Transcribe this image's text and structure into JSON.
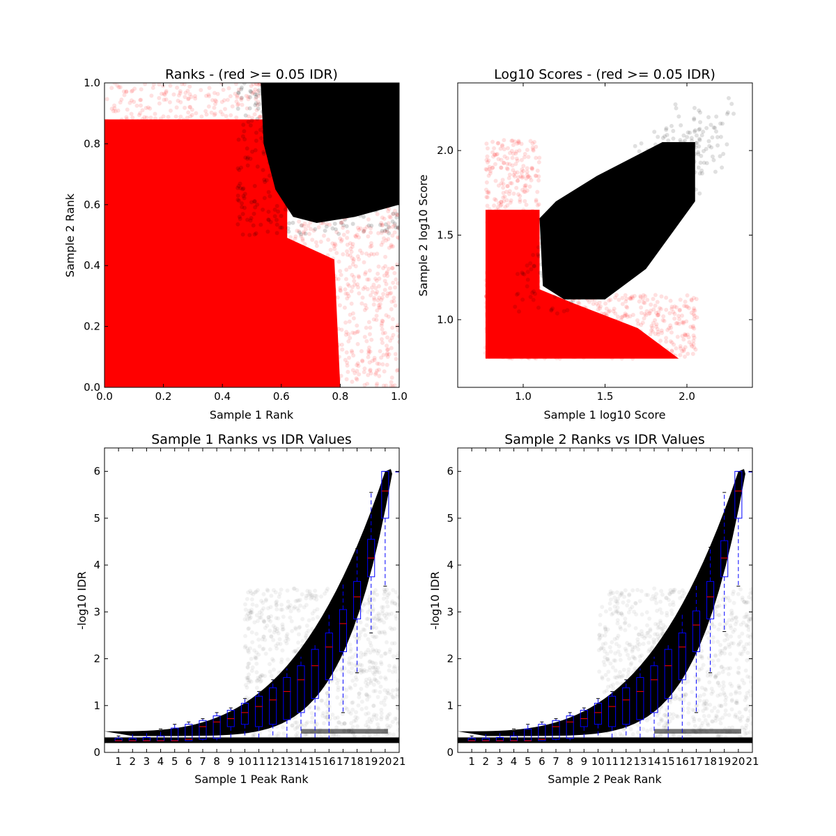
{
  "chart_data": [
    {
      "type": "scatter",
      "title": "Ranks - (red >= 0.05 IDR)",
      "xlabel": "Sample 1 Rank",
      "ylabel": "Sample 2 Rank",
      "xlim": [
        0.0,
        1.0
      ],
      "ylim": [
        0.0,
        1.0
      ],
      "xticks": [
        "0.0",
        "0.2",
        "0.4",
        "0.6",
        "0.8",
        "1.0"
      ],
      "yticks": [
        "0.0",
        "0.2",
        "0.4",
        "0.6",
        "0.8",
        "1.0"
      ],
      "grid": false,
      "series": [
        {
          "color": "#ff0000",
          "description_points": "dense cloud covering most of the area below the black region",
          "extent": {
            "x": [
              0.0,
              1.0
            ],
            "y": [
              0.0,
              1.0
            ]
          }
        },
        {
          "color": "#000000",
          "extent": {
            "x": [
              0.53,
              1.0
            ],
            "y": [
              0.54,
              1.0
            ]
          }
        }
      ],
      "black_boundary": [
        [
          0.53,
          1.0
        ],
        [
          0.54,
          0.8
        ],
        [
          0.58,
          0.65
        ],
        [
          0.64,
          0.56
        ],
        [
          0.72,
          0.54
        ],
        [
          0.85,
          0.56
        ],
        [
          1.0,
          0.6
        ]
      ]
    },
    {
      "type": "scatter",
      "title": "Log10 Scores - (red >= 0.05 IDR)",
      "xlabel": "Sample 1 log10 Score",
      "ylabel": "Sample 2 log10 Score",
      "xlim": [
        0.6,
        2.4
      ],
      "ylim": [
        0.6,
        2.4
      ],
      "xticks": [
        "1.0",
        "1.5",
        "2.0"
      ],
      "yticks": [
        "1.0",
        "1.5",
        "2.0"
      ],
      "grid": false,
      "series": [
        {
          "color": "#ff0000",
          "extent": {
            "x": [
              0.77,
              2.07
            ],
            "y": [
              0.77,
              2.1
            ]
          }
        },
        {
          "color": "#000000",
          "extent": {
            "x": [
              1.1,
              2.15
            ],
            "y": [
              1.1,
              2.15
            ]
          }
        }
      ]
    },
    {
      "type": "box",
      "title": "Sample 1 Ranks vs IDR Values",
      "xlabel": "Sample 1 Peak Rank",
      "ylabel": "-log10 IDR",
      "xlim": [
        0,
        21
      ],
      "ylim": [
        0,
        6.5
      ],
      "xticks": [
        "1",
        "2",
        "3",
        "4",
        "5",
        "6",
        "7",
        "8",
        "9",
        "10",
        "11",
        "12",
        "13",
        "14",
        "15",
        "16",
        "17",
        "18",
        "19",
        "20",
        "21"
      ],
      "yticks": [
        "0",
        "1",
        "2",
        "3",
        "4",
        "5",
        "6"
      ],
      "grid": false,
      "boxes": [
        {
          "x": 1,
          "q1": 0.25,
          "med": 0.25,
          "q3": 0.3,
          "wlo": 0.25,
          "whi": 0.35
        },
        {
          "x": 2,
          "q1": 0.25,
          "med": 0.25,
          "q3": 0.3,
          "wlo": 0.25,
          "whi": 0.4
        },
        {
          "x": 3,
          "q1": 0.25,
          "med": 0.25,
          "q3": 0.32,
          "wlo": 0.25,
          "whi": 0.42
        },
        {
          "x": 4,
          "q1": 0.25,
          "med": 0.25,
          "q3": 0.35,
          "wlo": 0.25,
          "whi": 0.5
        },
        {
          "x": 5,
          "q1": 0.25,
          "med": 0.25,
          "q3": 0.52,
          "wlo": 0.25,
          "whi": 0.6
        },
        {
          "x": 6,
          "q1": 0.25,
          "med": 0.28,
          "q3": 0.6,
          "wlo": 0.25,
          "whi": 0.65
        },
        {
          "x": 7,
          "q1": 0.28,
          "med": 0.55,
          "q3": 0.68,
          "wlo": 0.25,
          "whi": 0.72
        },
        {
          "x": 8,
          "q1": 0.3,
          "med": 0.65,
          "q3": 0.78,
          "wlo": 0.25,
          "whi": 0.85
        },
        {
          "x": 9,
          "q1": 0.55,
          "med": 0.72,
          "q3": 0.9,
          "wlo": 0.25,
          "whi": 0.95
        },
        {
          "x": 10,
          "q1": 0.6,
          "med": 0.85,
          "q3": 1.05,
          "wlo": 0.3,
          "whi": 1.15
        },
        {
          "x": 11,
          "q1": 0.55,
          "med": 0.98,
          "q3": 1.2,
          "wlo": 0.3,
          "whi": 1.3
        },
        {
          "x": 12,
          "q1": 0.6,
          "med": 1.12,
          "q3": 1.38,
          "wlo": 0.3,
          "whi": 1.55
        },
        {
          "x": 13,
          "q1": 0.7,
          "med": 1.3,
          "q3": 1.6,
          "wlo": 0.3,
          "whi": 1.8
        },
        {
          "x": 14,
          "q1": 0.85,
          "med": 1.55,
          "q3": 1.85,
          "wlo": 0.3,
          "whi": 2.05
        },
        {
          "x": 15,
          "q1": 1.15,
          "med": 1.85,
          "q3": 2.2,
          "wlo": 0.3,
          "whi": 2.3
        },
        {
          "x": 16,
          "q1": 1.55,
          "med": 2.25,
          "q3": 2.55,
          "wlo": 0.28,
          "whi": 2.95
        },
        {
          "x": 17,
          "q1": 2.15,
          "med": 2.75,
          "q3": 3.05,
          "wlo": 0.85,
          "whi": 3.6
        },
        {
          "x": 18,
          "q1": 2.85,
          "med": 3.32,
          "q3": 3.65,
          "wlo": 1.7,
          "whi": 4.35
        },
        {
          "x": 19,
          "q1": 3.75,
          "med": 4.15,
          "q3": 4.55,
          "wlo": 2.55,
          "whi": 5.55
        },
        {
          "x": 20,
          "q1": 5.0,
          "med": 5.58,
          "q3": 6.0,
          "wlo": 3.55,
          "whi": 6.0
        },
        {
          "x": 21,
          "q1": 6.0,
          "med": 6.0,
          "q3": 6.0,
          "wlo": 6.0,
          "whi": 6.0
        }
      ]
    },
    {
      "type": "box",
      "title": "Sample 2 Ranks vs IDR Values",
      "xlabel": "Sample 2 Peak Rank",
      "ylabel": "-log10 IDR",
      "xlim": [
        0,
        21
      ],
      "ylim": [
        0,
        6.5
      ],
      "xticks": [
        "1",
        "2",
        "3",
        "4",
        "5",
        "6",
        "7",
        "8",
        "9",
        "10",
        "11",
        "12",
        "13",
        "14",
        "15",
        "16",
        "17",
        "18",
        "19",
        "20",
        "21"
      ],
      "yticks": [
        "0",
        "1",
        "2",
        "3",
        "4",
        "5",
        "6"
      ],
      "grid": false,
      "boxes": [
        {
          "x": 1,
          "q1": 0.25,
          "med": 0.25,
          "q3": 0.3,
          "wlo": 0.25,
          "whi": 0.35
        },
        {
          "x": 2,
          "q1": 0.25,
          "med": 0.25,
          "q3": 0.3,
          "wlo": 0.25,
          "whi": 0.4
        },
        {
          "x": 3,
          "q1": 0.25,
          "med": 0.25,
          "q3": 0.32,
          "wlo": 0.25,
          "whi": 0.42
        },
        {
          "x": 4,
          "q1": 0.25,
          "med": 0.25,
          "q3": 0.35,
          "wlo": 0.25,
          "whi": 0.5
        },
        {
          "x": 5,
          "q1": 0.25,
          "med": 0.25,
          "q3": 0.5,
          "wlo": 0.25,
          "whi": 0.6
        },
        {
          "x": 6,
          "q1": 0.25,
          "med": 0.28,
          "q3": 0.6,
          "wlo": 0.25,
          "whi": 0.65
        },
        {
          "x": 7,
          "q1": 0.28,
          "med": 0.55,
          "q3": 0.68,
          "wlo": 0.25,
          "whi": 0.72
        },
        {
          "x": 8,
          "q1": 0.3,
          "med": 0.65,
          "q3": 0.78,
          "wlo": 0.25,
          "whi": 0.85
        },
        {
          "x": 9,
          "q1": 0.55,
          "med": 0.72,
          "q3": 0.9,
          "wlo": 0.25,
          "whi": 0.95
        },
        {
          "x": 10,
          "q1": 0.6,
          "med": 0.85,
          "q3": 1.05,
          "wlo": 0.3,
          "whi": 1.15
        },
        {
          "x": 11,
          "q1": 0.55,
          "med": 0.98,
          "q3": 1.2,
          "wlo": 0.3,
          "whi": 1.3
        },
        {
          "x": 12,
          "q1": 0.6,
          "med": 1.12,
          "q3": 1.38,
          "wlo": 0.3,
          "whi": 1.55
        },
        {
          "x": 13,
          "q1": 0.7,
          "med": 1.3,
          "q3": 1.6,
          "wlo": 0.3,
          "whi": 1.8
        },
        {
          "x": 14,
          "q1": 0.85,
          "med": 1.55,
          "q3": 1.85,
          "wlo": 0.3,
          "whi": 2.05
        },
        {
          "x": 15,
          "q1": 1.15,
          "med": 1.85,
          "q3": 2.2,
          "wlo": 0.3,
          "whi": 2.3
        },
        {
          "x": 16,
          "q1": 1.55,
          "med": 2.25,
          "q3": 2.55,
          "wlo": 0.28,
          "whi": 2.95
        },
        {
          "x": 17,
          "q1": 2.15,
          "med": 2.72,
          "q3": 3.02,
          "wlo": 0.85,
          "whi": 3.6
        },
        {
          "x": 18,
          "q1": 2.85,
          "med": 3.32,
          "q3": 3.65,
          "wlo": 1.7,
          "whi": 4.38
        },
        {
          "x": 19,
          "q1": 3.75,
          "med": 4.15,
          "q3": 4.52,
          "wlo": 2.58,
          "whi": 5.55
        },
        {
          "x": 20,
          "q1": 5.0,
          "med": 5.58,
          "q3": 6.0,
          "wlo": 3.55,
          "whi": 6.0
        },
        {
          "x": 21,
          "q1": 6.0,
          "med": 6.0,
          "q3": 6.0,
          "wlo": 6.0,
          "whi": 6.0
        }
      ]
    }
  ]
}
